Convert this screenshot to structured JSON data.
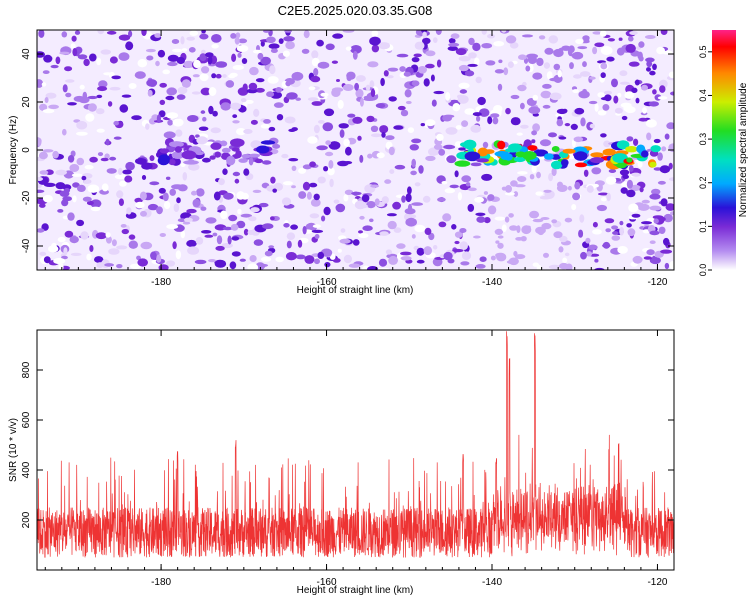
{
  "title": "C2E5.2025.020.03.35.G08",
  "colors": {
    "snr_line": "#ee3333",
    "spectrogram_base": "#7a2bd6",
    "axis": "#000000"
  },
  "colorbar": {
    "label": "Normalized spectral amplitude",
    "range": [
      0.0,
      0.55
    ],
    "ticks": [
      "0.0",
      "0.1",
      "0.2",
      "0.3",
      "0.4",
      "0.5"
    ],
    "colormap": [
      "#ffffff",
      "#b48cf0",
      "#7a2bd6",
      "#2a12d8",
      "#00aaff",
      "#00e0c0",
      "#22dd22",
      "#ccee00",
      "#ff8800",
      "#ff0000",
      "#ff2288"
    ]
  },
  "chart_data": [
    {
      "type": "heatmap",
      "title": "C2E5.2025.020.03.35.G08",
      "xlabel": "Height of straight line (km)",
      "ylabel": "Frequency (Hz)",
      "xlim": [
        -195,
        -118
      ],
      "ylim": [
        -50,
        50
      ],
      "x_ticks": [
        "-180",
        "-160",
        "-140",
        "-120"
      ],
      "y_ticks": [
        "40",
        "20",
        "0",
        "-20",
        "-40"
      ],
      "colorbar_label": "Normalized spectral amplitude",
      "features": [
        {
          "x_range": [
            -180,
            -166
          ],
          "frequency_center": -1,
          "peak_amplitude": 0.15
        },
        {
          "x_range": [
            -144,
            -120
          ],
          "frequency_center": -2,
          "peak_amplitude": 0.5
        }
      ]
    },
    {
      "type": "line",
      "xlabel": "Height of straight line (km)",
      "ylabel": "SNR (10 * v/v)",
      "xlim": [
        -195,
        -118
      ],
      "ylim": [
        0,
        960
      ],
      "x_ticks": [
        "-180",
        "-160",
        "-140",
        "-120"
      ],
      "y_ticks": [
        "200",
        "400",
        "600",
        "800"
      ],
      "baseline": 150,
      "typical_peak": 400,
      "spikes": [
        {
          "x": -138.2,
          "y": 960
        },
        {
          "x": -137.9,
          "y": 860
        },
        {
          "x": -134.8,
          "y": 960
        },
        {
          "x": -139.5,
          "y": 460
        },
        {
          "x": -143.5,
          "y": 470
        },
        {
          "x": -171.0,
          "y": 530
        },
        {
          "x": -178.0,
          "y": 480
        }
      ]
    }
  ]
}
